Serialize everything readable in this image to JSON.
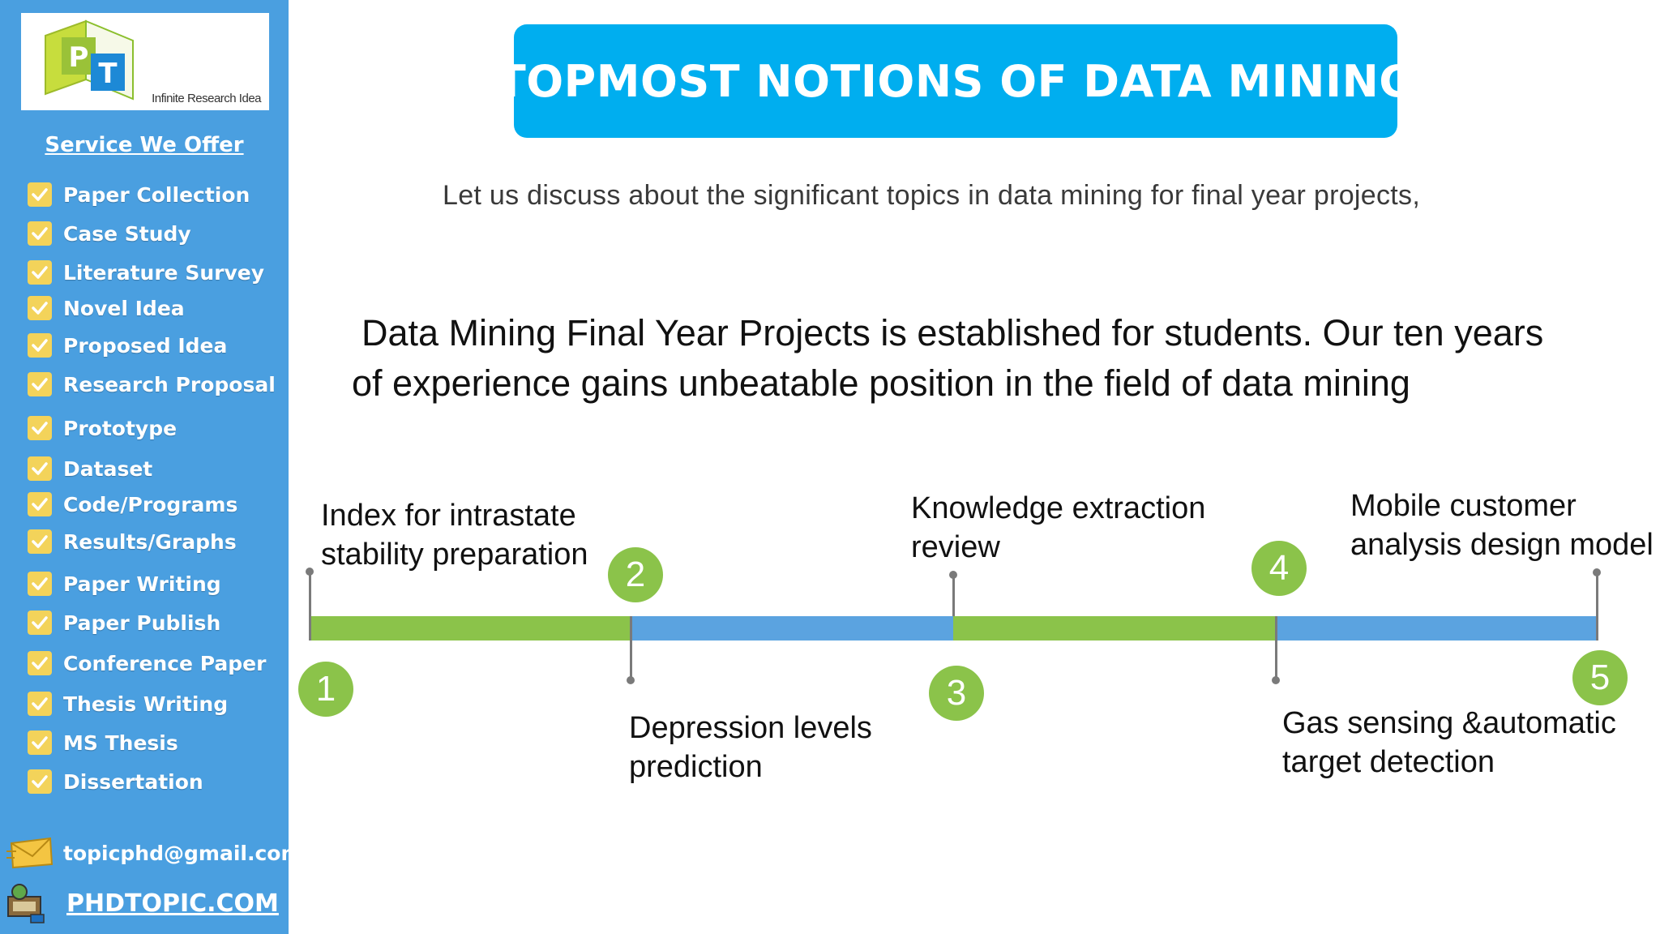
{
  "logo": {
    "letters": "PT",
    "caption": "Infinite Research Idea"
  },
  "sidebar": {
    "heading": "Service We Offer",
    "items": [
      {
        "label": "Paper Collection"
      },
      {
        "label": "Case Study"
      },
      {
        "label": "Literature Survey"
      },
      {
        "label": "Novel Idea"
      },
      {
        "label": "Proposed Idea"
      },
      {
        "label": "Research Proposal"
      },
      {
        "label": "Prototype"
      },
      {
        "label": "Dataset"
      },
      {
        "label": "Code/Programs"
      },
      {
        "label": "Results/Graphs"
      },
      {
        "label": "Paper Writing"
      },
      {
        "label": "Paper Publish"
      },
      {
        "label": "Conference Paper"
      },
      {
        "label": "Thesis Writing"
      },
      {
        "label": "MS Thesis"
      },
      {
        "label": "Dissertation"
      }
    ],
    "email": "topicphd@gmail.com",
    "website": "PHDTOPIC.COM"
  },
  "main": {
    "title": "TOPMOST NOTIONS OF DATA MINING",
    "subtitle": "Let us discuss about the significant topics in data mining for final year projects,",
    "intro_line1": "Data Mining Final Year Projects is established for students. Our ten years",
    "intro_line2": "of experience gains unbeatable position in the field of data mining"
  },
  "timeline": {
    "milestones": [
      {
        "number": "1",
        "line1": "Index for intrastate",
        "line2": "stability preparation"
      },
      {
        "number": "2",
        "line1": "Depression levels",
        "line2": "prediction"
      },
      {
        "number": "3",
        "line1": "Knowledge extraction",
        "line2": "review"
      },
      {
        "number": "4",
        "line1": "Gas sensing &automatic",
        "line2": "target detection"
      },
      {
        "number": "5",
        "line1": "Mobile customer",
        "line2": "analysis design model"
      }
    ]
  },
  "colors": {
    "sidebar_bg": "#4a9fe0",
    "title_banner": "#00aeef",
    "segment_green": "#8bc34a",
    "segment_blue": "#5ba3e0",
    "node_green": "#8bc34a",
    "check_yellow": "#f3d35a"
  },
  "icons": [
    "logo-icon",
    "checkbox-icon",
    "email-envelope-icon",
    "web-globe-icon"
  ]
}
